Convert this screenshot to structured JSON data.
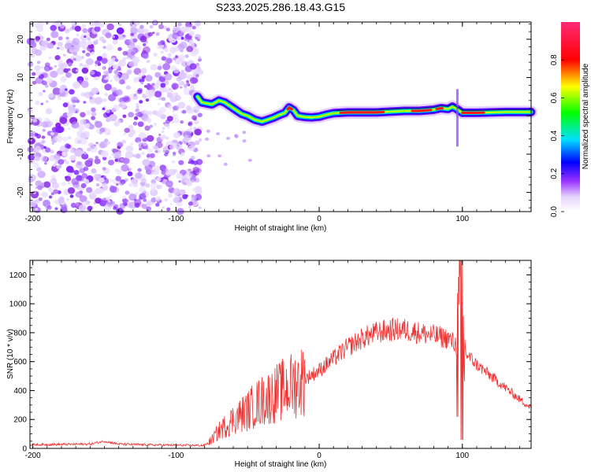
{
  "title": "S233.2025.286.18.43.G15",
  "chart_data": [
    {
      "type": "heatmap",
      "name": "spectrogram",
      "xlabel": "Height of straight line (km)",
      "ylabel": "Frequency (Hz)",
      "xlim": [
        -202,
        148
      ],
      "ylim": [
        -25,
        24.5
      ],
      "xticks": [
        "-200",
        "-100",
        "0",
        "100"
      ],
      "yticks": [
        "-20",
        "-10",
        "0",
        "10",
        "20"
      ],
      "noise_region_x": [
        -202,
        -83
      ],
      "ridge": {
        "x": [
          -85,
          -82,
          -75,
          -70,
          -66,
          -62,
          -58,
          -54,
          -50,
          -45,
          -40,
          -36,
          -32,
          -28,
          -24,
          -21,
          -18,
          -15,
          -10,
          -5,
          0,
          5,
          10,
          20,
          30,
          40,
          50,
          60,
          70,
          80,
          85,
          90,
          93,
          96,
          100,
          110,
          120,
          130,
          148
        ],
        "y": [
          5,
          3.5,
          3.0,
          4.0,
          3.5,
          2.5,
          1.5,
          0.5,
          0.0,
          -1.0,
          -1.5,
          -1.0,
          -0.5,
          0.2,
          0.8,
          2.2,
          1.5,
          0.0,
          -0.3,
          -0.4,
          -0.2,
          0.3,
          0.7,
          0.9,
          0.9,
          0.9,
          1.1,
          1.3,
          1.3,
          1.6,
          2.0,
          1.8,
          2.4,
          1.8,
          0.8,
          0.8,
          0.9,
          1.0,
          1.0
        ]
      },
      "colorbar": {
        "label": "Normalized spectral amplitude",
        "ticks": [
          "0.0",
          "0.2",
          "0.4",
          "0.6",
          "0.8"
        ],
        "range": [
          0,
          1
        ]
      }
    },
    {
      "type": "line",
      "name": "snr",
      "xlabel": "Height of straight line (km)",
      "ylabel": "SNR (10 * v/v)",
      "xlim": [
        -202,
        148
      ],
      "ylim": [
        0,
        1300
      ],
      "xticks": [
        "-200",
        "-100",
        "0",
        "100"
      ],
      "yticks": [
        "0",
        "200",
        "400",
        "600",
        "800",
        "1000",
        "1200"
      ],
      "color": "#ee3333",
      "envelope": {
        "x": [
          -202,
          -160,
          -150,
          -140,
          -120,
          -100,
          -80,
          -75,
          -70,
          -60,
          -50,
          -45,
          -40,
          -30,
          -20,
          -10,
          0,
          10,
          20,
          30,
          40,
          50,
          60,
          70,
          80,
          90,
          95,
          97,
          99,
          101,
          103,
          110,
          120,
          130,
          140,
          148
        ],
        "y": [
          25,
          30,
          50,
          30,
          25,
          22,
          20,
          60,
          120,
          200,
          260,
          300,
          330,
          380,
          430,
          480,
          540,
          620,
          700,
          760,
          800,
          820,
          820,
          800,
          780,
          760,
          720,
          700,
          1100,
          700,
          650,
          580,
          500,
          420,
          340,
          280
        ]
      }
    }
  ]
}
